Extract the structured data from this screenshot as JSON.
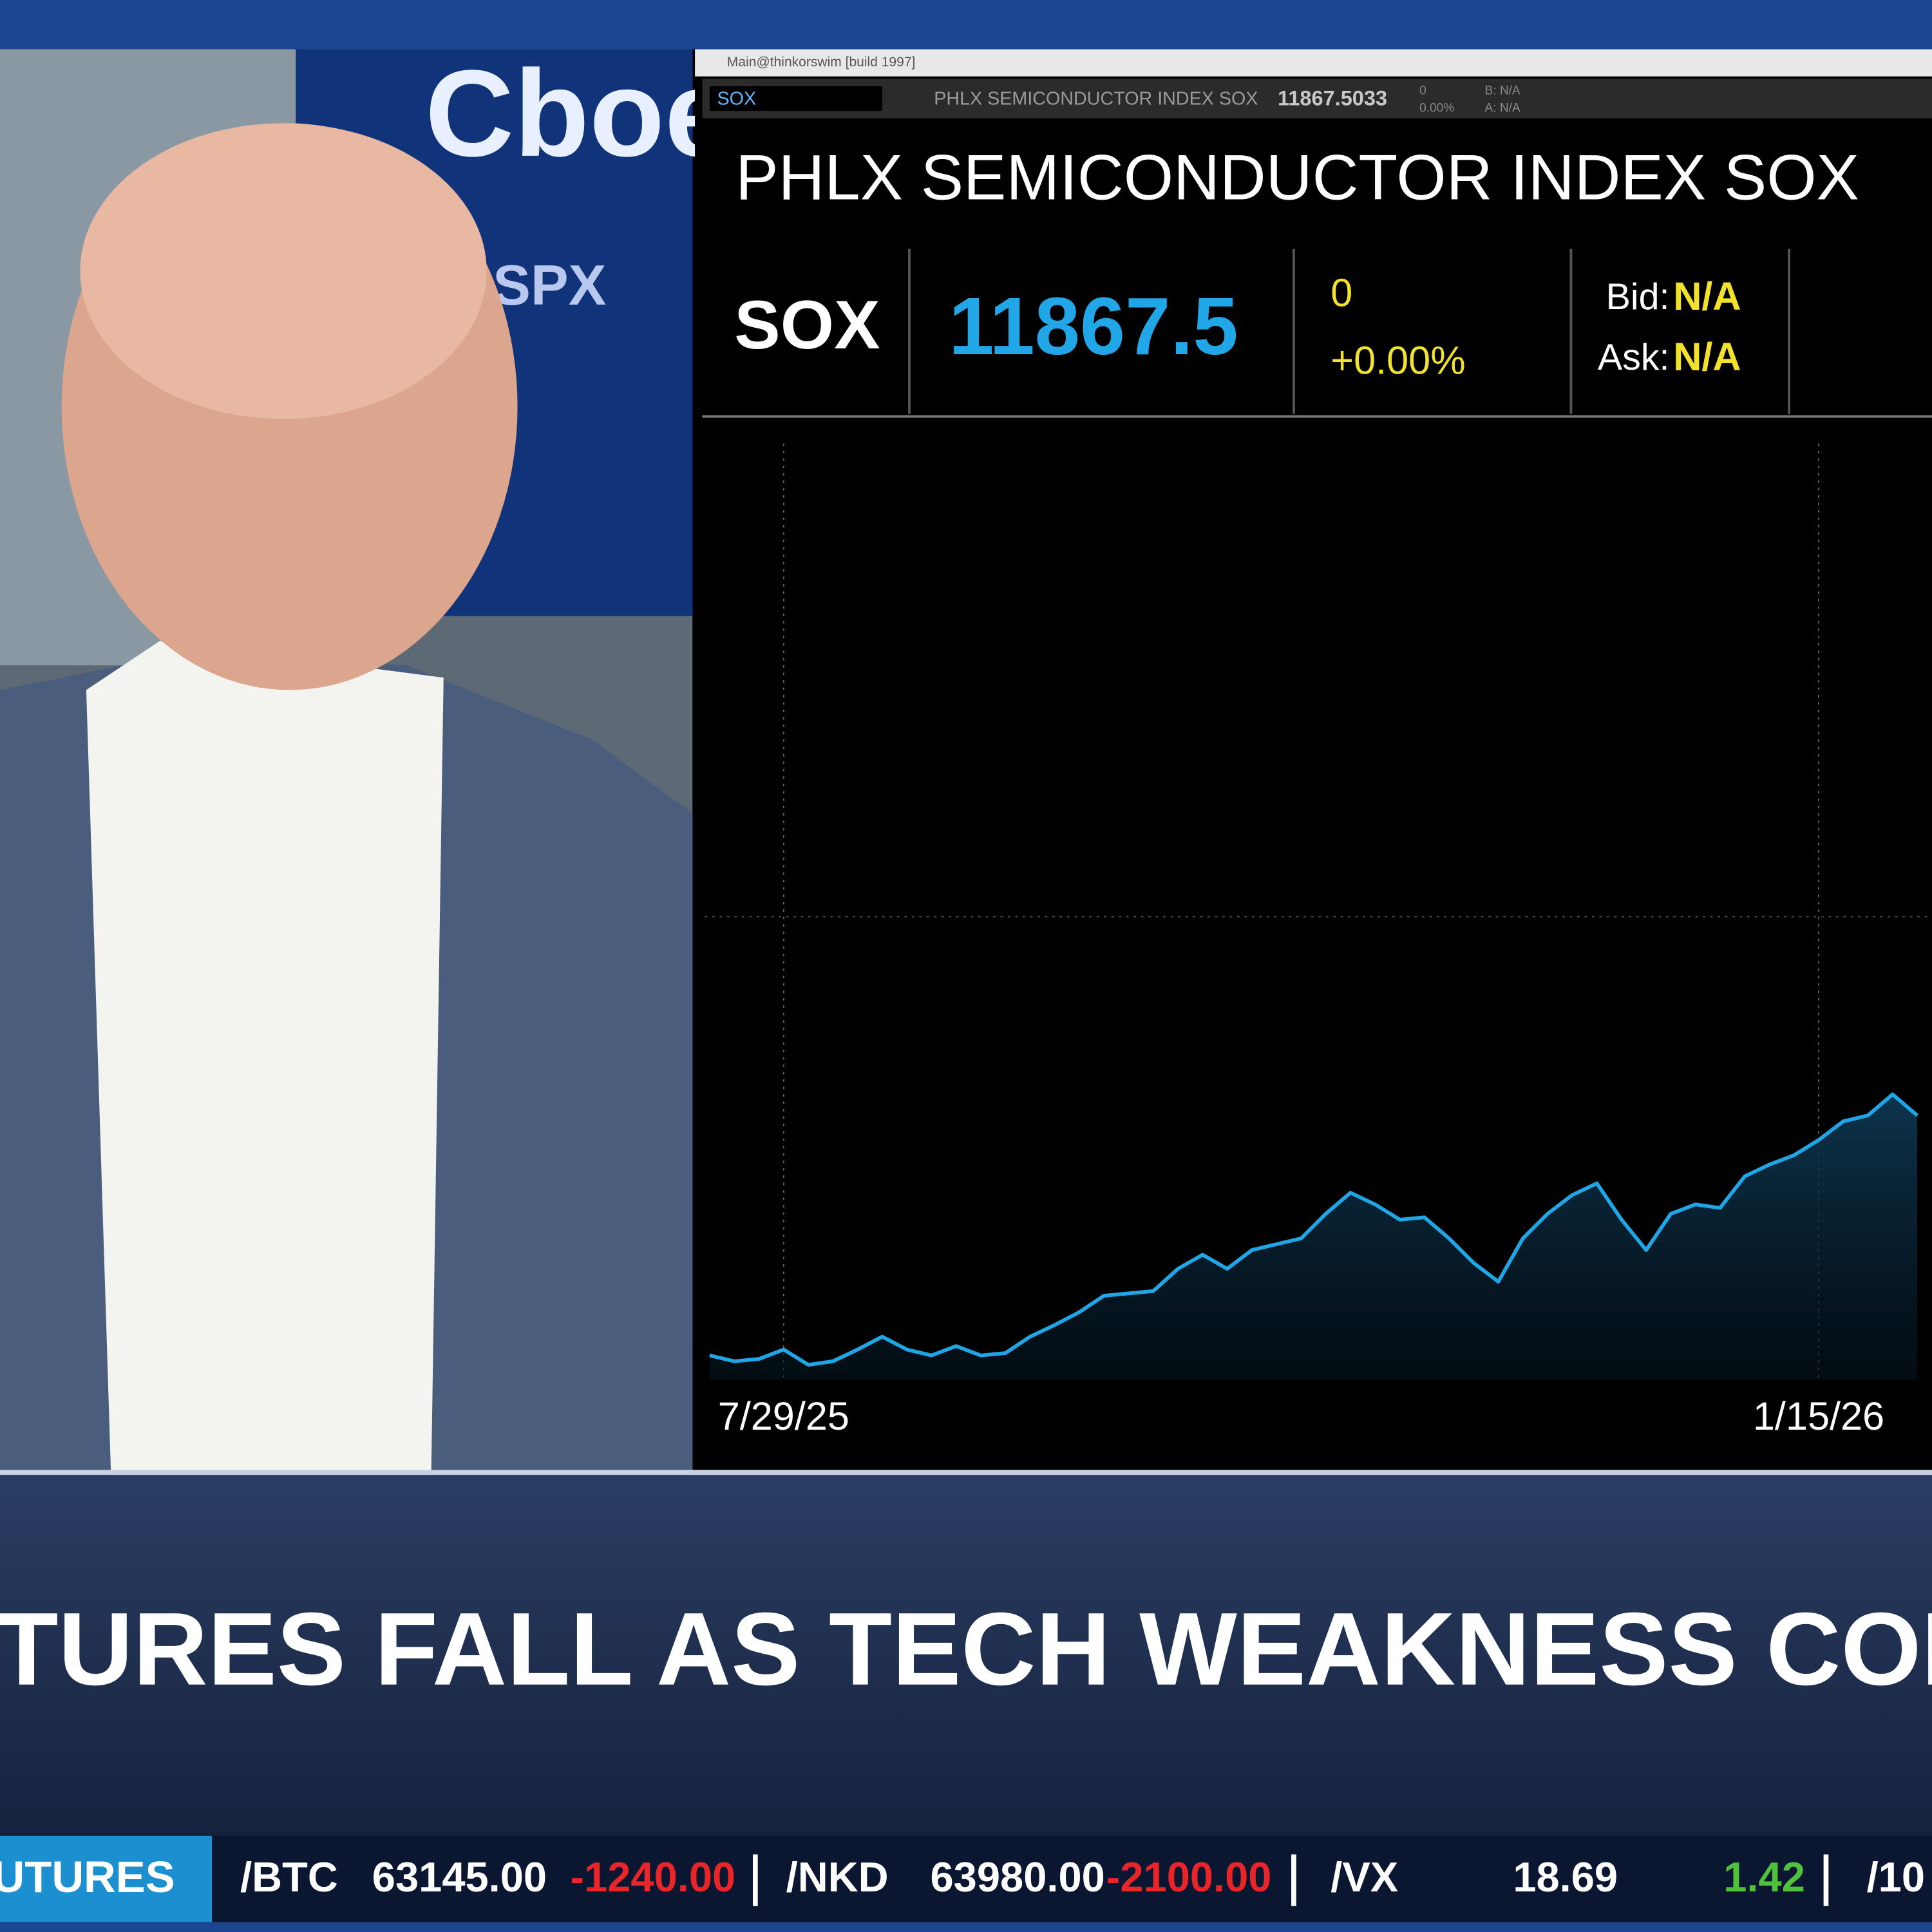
{
  "window": {
    "title": "Main@thinkorswim [build 1997]",
    "symbol": "SOX",
    "description": "PHLX SEMICONDUCTOR INDEX SOX",
    "last": "11867.5033",
    "change": "0",
    "percent": "0.00%",
    "bid": "B: N/A",
    "ask": "A: N/A"
  },
  "quote": {
    "title": "PHLX SEMICONDUCTOR INDEX SOX",
    "symbol": "SOX",
    "price": "11867.5",
    "change": "0",
    "percent": "+0.00%",
    "bid_label": "Bid:",
    "bid": "N/A",
    "ask_label": "Ask:",
    "ask": "N/A"
  },
  "backdrop": {
    "logo": "Cboe",
    "sign": "SPX"
  },
  "headline": "TURES FALL AS TECH WEAKNESS CON",
  "ticker": {
    "section": "UTURES",
    "items": [
      {
        "symbol": "/BTC",
        "price": "63145.00",
        "change": "-1240.00"
      },
      {
        "symbol": "/NKD",
        "price": "63980.00",
        "change": "-2100.00"
      },
      {
        "symbol": "/VX",
        "price": "18.69",
        "change": "1.42"
      },
      {
        "symbol": "/10"
      }
    ]
  },
  "chart_data": {
    "type": "line",
    "categories": [
      null,
      null,
      null,
      "7/29/25",
      null,
      null,
      null,
      null,
      null,
      null,
      null,
      null,
      null,
      null,
      null,
      null,
      null,
      null,
      null,
      null,
      null,
      null,
      null,
      null,
      null,
      null,
      null,
      null,
      null,
      null,
      null,
      null,
      null,
      null,
      null,
      null,
      null,
      null,
      null,
      null,
      null,
      null,
      null,
      null,
      null,
      "1/15/26",
      null,
      null,
      null,
      null
    ],
    "series": [
      {
        "color": "#1ea6e6",
        "values": [
          5610,
          5560,
          5580,
          5660,
          5530,
          5560,
          5660,
          5770,
          5660,
          5610,
          5690,
          5610,
          5630,
          5770,
          5870,
          5980,
          6120,
          6140,
          6160,
          6350,
          6470,
          6350,
          6510,
          6560,
          6610,
          6820,
          7000,
          6900,
          6770,
          6790,
          6610,
          6400,
          6240,
          6610,
          6820,
          6980,
          7080,
          6770,
          6510,
          6820,
          6900,
          6870,
          7140,
          7240,
          7320,
          7450,
          7610,
          7660,
          7840,
          7660
        ]
      }
    ],
    "ylim": [
      5400,
      13400
    ]
  }
}
